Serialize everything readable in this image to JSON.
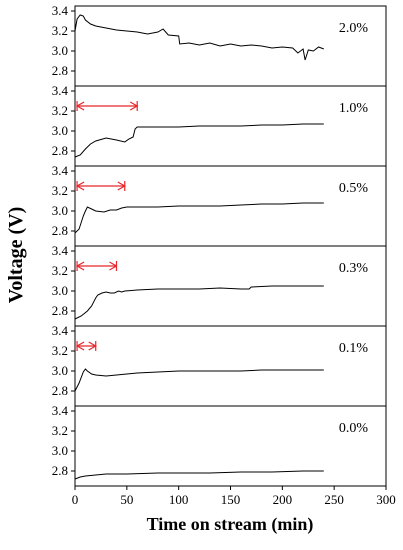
{
  "chart_data": {
    "type": "line",
    "xlabel": "Time on stream (min)",
    "ylabel": "Voltage (V)",
    "xlim": [
      0,
      300
    ],
    "x_ticks": [
      "0",
      "50",
      "100",
      "150",
      "200",
      "250",
      "300"
    ],
    "ylim": [
      2.7,
      3.4
    ],
    "y_ticks": [
      "2.8",
      "3.0",
      "3.2",
      "3.4"
    ],
    "grid": false,
    "panels": [
      {
        "label": "2.0%",
        "series": [
          {
            "points": [
              [
                0,
                3.2
              ],
              [
                2,
                3.32
              ],
              [
                5,
                3.36
              ],
              [
                8,
                3.35
              ],
              [
                10,
                3.31
              ],
              [
                15,
                3.27
              ],
              [
                20,
                3.25
              ],
              [
                30,
                3.23
              ],
              [
                40,
                3.21
              ],
              [
                50,
                3.2
              ],
              [
                60,
                3.19
              ],
              [
                70,
                3.17
              ],
              [
                80,
                3.19
              ],
              [
                85,
                3.22
              ],
              [
                90,
                3.16
              ],
              [
                100,
                3.15
              ],
              [
                101,
                3.07
              ],
              [
                110,
                3.08
              ],
              [
                120,
                3.06
              ],
              [
                130,
                3.08
              ],
              [
                140,
                3.05
              ],
              [
                150,
                3.07
              ],
              [
                160,
                3.05
              ],
              [
                170,
                3.06
              ],
              [
                180,
                3.05
              ],
              [
                190,
                3.03
              ],
              [
                200,
                3.04
              ],
              [
                210,
                3.03
              ],
              [
                215,
                2.98
              ],
              [
                220,
                3.02
              ],
              [
                222,
                2.91
              ],
              [
                225,
                3.01
              ],
              [
                230,
                3.0
              ],
              [
                235,
                3.04
              ],
              [
                240,
                3.02
              ]
            ]
          }
        ]
      },
      {
        "label": "1.0%",
        "arrow": [
          2,
          60
        ],
        "series": [
          {
            "points": [
              [
                0,
                2.74
              ],
              [
                5,
                2.76
              ],
              [
                10,
                2.82
              ],
              [
                15,
                2.87
              ],
              [
                20,
                2.9
              ],
              [
                30,
                2.93
              ],
              [
                40,
                2.91
              ],
              [
                48,
                2.89
              ],
              [
                52,
                2.92
              ],
              [
                56,
                2.94
              ],
              [
                58,
                3.02
              ],
              [
                60,
                3.04
              ],
              [
                80,
                3.04
              ],
              [
                100,
                3.04
              ],
              [
                120,
                3.05
              ],
              [
                140,
                3.05
              ],
              [
                160,
                3.05
              ],
              [
                180,
                3.06
              ],
              [
                200,
                3.06
              ],
              [
                220,
                3.07
              ],
              [
                240,
                3.07
              ]
            ]
          }
        ]
      },
      {
        "label": "0.5%",
        "arrow": [
          2,
          48
        ],
        "series": [
          {
            "points": [
              [
                0,
                2.78
              ],
              [
                4,
                2.82
              ],
              [
                8,
                2.95
              ],
              [
                10,
                3.0
              ],
              [
                12,
                3.04
              ],
              [
                16,
                3.02
              ],
              [
                20,
                3.0
              ],
              [
                28,
                2.99
              ],
              [
                34,
                3.01
              ],
              [
                40,
                3.01
              ],
              [
                45,
                3.03
              ],
              [
                50,
                3.04
              ],
              [
                80,
                3.04
              ],
              [
                100,
                3.05
              ],
              [
                120,
                3.05
              ],
              [
                140,
                3.05
              ],
              [
                160,
                3.06
              ],
              [
                180,
                3.07
              ],
              [
                200,
                3.07
              ],
              [
                220,
                3.08
              ],
              [
                240,
                3.08
              ]
            ]
          }
        ]
      },
      {
        "label": "0.3%",
        "arrow": [
          2,
          40
        ],
        "series": [
          {
            "points": [
              [
                0,
                2.72
              ],
              [
                6,
                2.75
              ],
              [
                12,
                2.8
              ],
              [
                16,
                2.85
              ],
              [
                20,
                2.93
              ],
              [
                22,
                2.96
              ],
              [
                26,
                2.98
              ],
              [
                30,
                2.99
              ],
              [
                34,
                2.98
              ],
              [
                38,
                2.98
              ],
              [
                42,
                3.0
              ],
              [
                45,
                2.99
              ],
              [
                48,
                3.0
              ],
              [
                60,
                3.01
              ],
              [
                80,
                3.02
              ],
              [
                100,
                3.02
              ],
              [
                120,
                3.02
              ],
              [
                140,
                3.03
              ],
              [
                160,
                3.02
              ],
              [
                168,
                3.02
              ],
              [
                170,
                3.04
              ],
              [
                190,
                3.05
              ],
              [
                210,
                3.05
              ],
              [
                230,
                3.05
              ],
              [
                240,
                3.05
              ]
            ]
          }
        ]
      },
      {
        "label": "0.1%",
        "arrow": [
          2,
          20
        ],
        "series": [
          {
            "points": [
              [
                0,
                2.8
              ],
              [
                4,
                2.88
              ],
              [
                8,
                2.99
              ],
              [
                10,
                3.02
              ],
              [
                12,
                3.0
              ],
              [
                16,
                2.97
              ],
              [
                20,
                2.96
              ],
              [
                30,
                2.95
              ],
              [
                40,
                2.96
              ],
              [
                50,
                2.97
              ],
              [
                60,
                2.98
              ],
              [
                80,
                2.99
              ],
              [
                100,
                3.0
              ],
              [
                120,
                3.0
              ],
              [
                140,
                3.0
              ],
              [
                160,
                3.0
              ],
              [
                180,
                3.01
              ],
              [
                200,
                3.01
              ],
              [
                220,
                3.01
              ],
              [
                240,
                3.01
              ]
            ]
          }
        ]
      },
      {
        "label": "0.0%",
        "series": [
          {
            "points": [
              [
                0,
                2.72
              ],
              [
                5,
                2.74
              ],
              [
                10,
                2.75
              ],
              [
                20,
                2.76
              ],
              [
                30,
                2.77
              ],
              [
                50,
                2.77
              ],
              [
                80,
                2.78
              ],
              [
                100,
                2.78
              ],
              [
                130,
                2.78
              ],
              [
                160,
                2.79
              ],
              [
                190,
                2.79
              ],
              [
                220,
                2.8
              ],
              [
                240,
                2.8
              ]
            ]
          }
        ]
      }
    ]
  }
}
